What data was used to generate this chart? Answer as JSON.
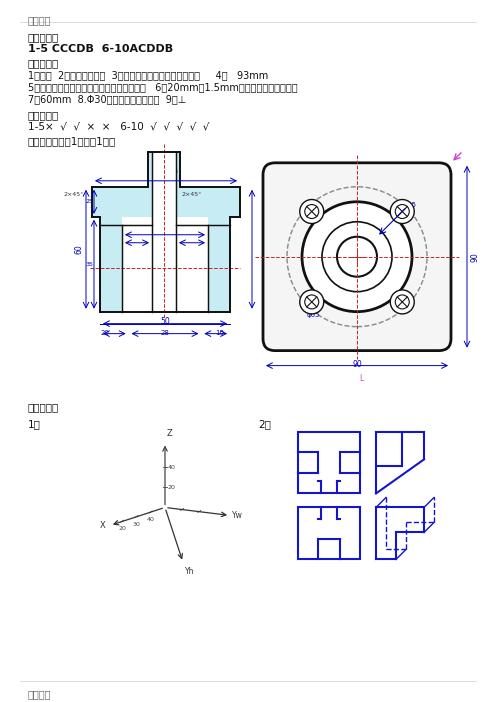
{
  "bg_color": "#ffffff",
  "header_text": "精品文档",
  "footer_text": "精品文档",
  "section1_title": "一、选择题",
  "section1_answer": "1-5 CCCDB  6-10ACDDB",
  "section2_title": "二、填空题",
  "section2_lines": [
    "1．毫米  2．粗实线、虚线  3．尺寸线、尺寸界线、尺寸数值     4．   93mm",
    "5．一组视图、尺寸标注、技术要求、标题栏   6．20mm、1.5mm、左旋、中径公差代号",
    "7．60mm  8.Φ30、基孔制、间隙配合  9．⊥"
  ],
  "section3_title": "三、判断题",
  "section3_answer": "1-5×  √  √  ×  ×   6-10  √  √  √  √  √",
  "section4_title": "四、标注尺寸（1个尺寸1分）",
  "section5_title": "五、作图题",
  "drawing1_label": "1）",
  "drawing2_label": "2）",
  "hatch_color": "#c8ecf4",
  "line_color": "#111111",
  "blue_color": "#0000bb",
  "red_color": "#cc2222",
  "blue2_color": "#1515cc"
}
